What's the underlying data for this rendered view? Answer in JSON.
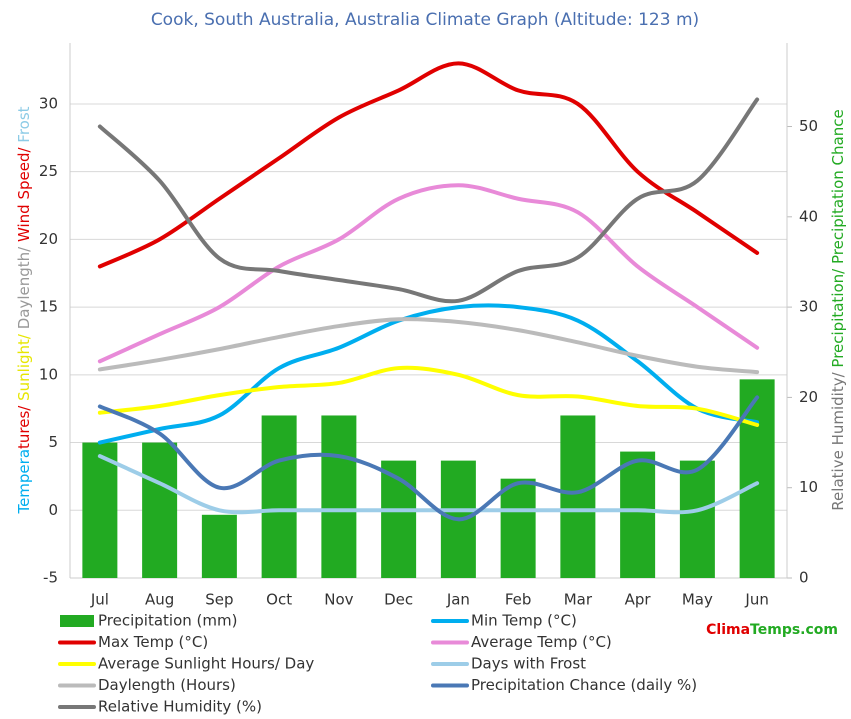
{
  "chart_data": {
    "type": "bar",
    "title": "Cook, South Australia, Australia Climate Graph (Altitude: 123 m)",
    "y_label_parts": [
      {
        "text": "Tempera",
        "color": "#00aeef"
      },
      {
        "text": "tures/",
        "color": "#e00000"
      },
      {
        "text": " Sunlight/",
        "color": "#e6e600"
      },
      {
        "text": " Daylength/",
        "color": "#999999"
      },
      {
        "text": " Wind Speed/",
        "color": "#e00000"
      },
      {
        "text": " Frost",
        "color": "#8ccbe6"
      }
    ],
    "y2_label_parts": [
      {
        "text": "Relative Humidity/",
        "color": "#777777"
      },
      {
        "text": " Precipitation/",
        "color": "#22aa22"
      },
      {
        "text": " Precipitation Chance",
        "color": "#22aa22"
      }
    ],
    "watermark_parts": [
      {
        "text": "Clima",
        "color": "#e00000"
      },
      {
        "text": "Temps.com",
        "color": "#22aa22"
      }
    ],
    "categories": [
      "Jul",
      "Aug",
      "Sep",
      "Oct",
      "Nov",
      "Dec",
      "Jan",
      "Feb",
      "Mar",
      "Apr",
      "May",
      "Jun"
    ],
    "ylim": [
      -5,
      34.5
    ],
    "yticks": [
      -5,
      0,
      5,
      10,
      15,
      20,
      25,
      30
    ],
    "y2lim": [
      0,
      59.25
    ],
    "y2ticks": [
      0,
      10,
      20,
      30,
      40,
      50
    ],
    "grid": true,
    "series": [
      {
        "name": "Precipitation (mm)",
        "type": "bar",
        "axis": "y2",
        "color": "#22aa22",
        "values": [
          15,
          15,
          7,
          18,
          18,
          13,
          13,
          11,
          18,
          14,
          13,
          22
        ]
      },
      {
        "name": "Min Temp (°C)",
        "type": "line",
        "color": "#00aeef",
        "values": [
          5,
          6,
          7,
          10.5,
          12,
          14,
          15,
          15,
          14,
          11,
          7.5,
          6.5
        ]
      },
      {
        "name": "Max Temp (°C)",
        "type": "line",
        "color": "#e00000",
        "values": [
          18,
          20,
          23,
          26,
          29,
          31,
          33,
          31,
          30,
          25,
          22,
          19
        ]
      },
      {
        "name": "Average Temp (°C)",
        "type": "line",
        "color": "#e88ad8",
        "values": [
          11,
          13,
          15,
          18,
          20,
          23,
          24,
          23,
          22,
          18,
          15,
          12
        ]
      },
      {
        "name": "Average Sunlight Hours/ Day",
        "type": "line",
        "color": "#ffff00",
        "values": [
          7.2,
          7.7,
          8.5,
          9.1,
          9.4,
          10.5,
          10,
          8.5,
          8.4,
          7.7,
          7.5,
          6.3
        ]
      },
      {
        "name": "Days with Frost",
        "type": "line",
        "color": "#9dcde8",
        "values": [
          4,
          2,
          0,
          0,
          0,
          0,
          0,
          0,
          0,
          0,
          0,
          2
        ]
      },
      {
        "name": "Daylength (Hours)",
        "type": "line",
        "color": "#bbbbbb",
        "values": [
          10.4,
          11.1,
          11.9,
          12.8,
          13.6,
          14.1,
          13.9,
          13.3,
          12.4,
          11.4,
          10.6,
          10.2
        ]
      },
      {
        "name": "Precipitation Chance (daily %)",
        "type": "line",
        "axis": "y2",
        "color": "#4a78b5",
        "values": [
          19,
          16,
          10,
          13,
          13.5,
          11,
          6.5,
          10.5,
          9.5,
          13,
          12,
          20
        ]
      },
      {
        "name": "Relative Humidity (%)",
        "type": "line",
        "axis": "y2",
        "color": "#777777",
        "values": [
          50,
          44,
          35.4,
          34,
          33,
          32,
          30.7,
          34,
          35.5,
          42,
          44,
          53
        ]
      }
    ]
  }
}
